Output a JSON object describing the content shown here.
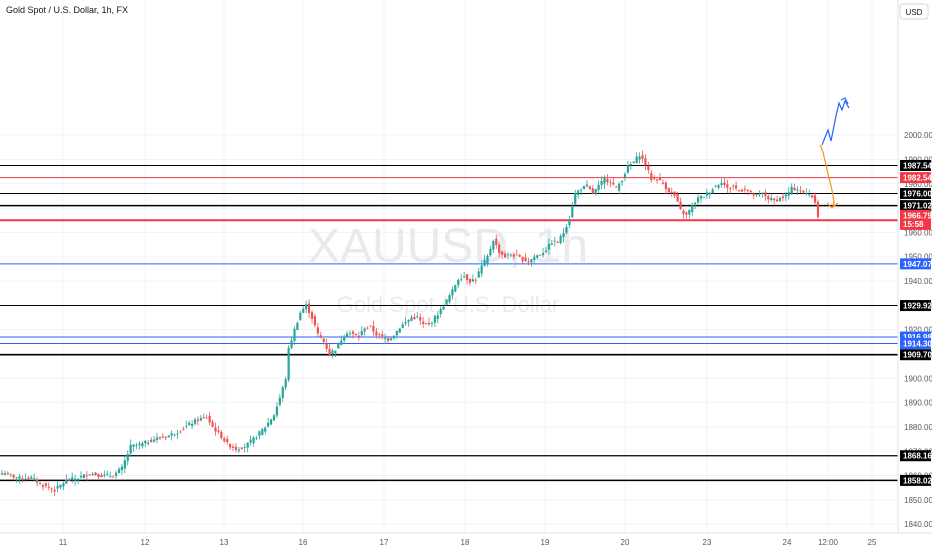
{
  "header": {
    "title": "Gold Spot / U.S. Dollar, 1h, FX",
    "currency": "USD"
  },
  "watermark": {
    "symbol": "XAUUSD, 1h",
    "name": "Gold Spot / U.S. Dollar"
  },
  "colors": {
    "up": "#26a69a",
    "down": "#ef5350",
    "grid": "#f0f3fa",
    "black_line": "#000000",
    "red_line": "#f23645",
    "blue_line": "#2962ff",
    "arrow_down": "#f7931a",
    "arrow_up": "#2962ff"
  },
  "chart_data": {
    "type": "candlestick",
    "symbol": "XAUUSD",
    "timeframe": "1h",
    "ylim": [
      1837,
      2010
    ],
    "y_ticks": [
      1840,
      1850,
      1860,
      1870,
      1880,
      1890,
      1900,
      1910,
      1920,
      1930,
      1940,
      1950,
      1960,
      1970,
      1980,
      1990,
      2000
    ],
    "x_ticks": [
      "11",
      "12",
      "13",
      "16",
      "17",
      "18",
      "19",
      "20",
      "23",
      "24",
      "12:00",
      "25"
    ],
    "grid": true,
    "levels": [
      {
        "value": 1987.54,
        "label": "1987.54",
        "style": "black"
      },
      {
        "value": 1982.54,
        "label": "1982.54",
        "style": "red"
      },
      {
        "value": 1976.0,
        "label": "1976.00",
        "style": "black"
      },
      {
        "value": 1971.02,
        "label": "1971.02",
        "style": "black"
      },
      {
        "value": 1965.0,
        "label": "1965.00",
        "style": "red"
      },
      {
        "value": 1947.07,
        "label": "1947.07",
        "style": "blue"
      },
      {
        "value": 1929.92,
        "label": "1929.92",
        "style": "black"
      },
      {
        "value": 1916.98,
        "label": "1916.98",
        "style": "blue"
      },
      {
        "value": 1914.3,
        "label": "1914.30",
        "style": "blue"
      },
      {
        "value": 1909.7,
        "label": "1909.70",
        "style": "black"
      },
      {
        "value": 1868.16,
        "label": "1868.16",
        "style": "black"
      },
      {
        "value": 1858.02,
        "label": "1858.02",
        "style": "black"
      }
    ],
    "last_price": {
      "value": 1966.79,
      "label": "1966.79",
      "countdown": "15:58"
    },
    "anchors": [
      [
        0,
        1861
      ],
      [
        6,
        1859
      ],
      [
        10,
        1859
      ],
      [
        14,
        1856
      ],
      [
        18,
        1854
      ],
      [
        22,
        1858
      ],
      [
        26,
        1859
      ],
      [
        30,
        1861
      ],
      [
        34,
        1860
      ],
      [
        38,
        1860
      ],
      [
        41,
        1863
      ],
      [
        44,
        1872
      ],
      [
        48,
        1873
      ],
      [
        52,
        1875
      ],
      [
        56,
        1876
      ],
      [
        60,
        1878
      ],
      [
        64,
        1881
      ],
      [
        67,
        1883
      ],
      [
        70,
        1884
      ],
      [
        72,
        1880
      ],
      [
        75,
        1876
      ],
      [
        77,
        1873
      ],
      [
        80,
        1871
      ],
      [
        83,
        1872
      ],
      [
        86,
        1875
      ],
      [
        90,
        1880
      ],
      [
        93,
        1885
      ],
      [
        95,
        1892
      ],
      [
        97,
        1900
      ],
      [
        98,
        1912
      ],
      [
        100,
        1920
      ],
      [
        102,
        1927
      ],
      [
        104,
        1930
      ],
      [
        106,
        1925
      ],
      [
        108,
        1918
      ],
      [
        110,
        1915
      ],
      [
        112,
        1910
      ],
      [
        114,
        1912
      ],
      [
        116,
        1916
      ],
      [
        118,
        1919
      ],
      [
        120,
        1918
      ],
      [
        122,
        1917
      ],
      [
        124,
        1921
      ],
      [
        126,
        1921
      ],
      [
        128,
        1918
      ],
      [
        130,
        1917
      ],
      [
        132,
        1916
      ],
      [
        134,
        1918
      ],
      [
        136,
        1921
      ],
      [
        138,
        1923
      ],
      [
        140,
        1925
      ],
      [
        142,
        1925
      ],
      [
        144,
        1922
      ],
      [
        146,
        1922
      ],
      [
        148,
        1925
      ],
      [
        150,
        1928
      ],
      [
        152,
        1932
      ],
      [
        154,
        1936
      ],
      [
        156,
        1941
      ],
      [
        158,
        1942
      ],
      [
        160,
        1940
      ],
      [
        162,
        1941
      ],
      [
        164,
        1946
      ],
      [
        166,
        1950
      ],
      [
        168,
        1957
      ],
      [
        170,
        1952
      ],
      [
        172,
        1950
      ],
      [
        174,
        1951
      ],
      [
        176,
        1950
      ],
      [
        178,
        1949
      ],
      [
        180,
        1948
      ],
      [
        182,
        1950
      ],
      [
        184,
        1951
      ],
      [
        186,
        1953
      ],
      [
        188,
        1956
      ],
      [
        190,
        1956
      ],
      [
        192,
        1960
      ],
      [
        194,
        1966
      ],
      [
        196,
        1976
      ],
      [
        198,
        1978
      ],
      [
        200,
        1979
      ],
      [
        202,
        1976
      ],
      [
        204,
        1979
      ],
      [
        206,
        1982
      ],
      [
        208,
        1981
      ],
      [
        210,
        1978
      ],
      [
        212,
        1982
      ],
      [
        214,
        1987
      ],
      [
        216,
        1989
      ],
      [
        218,
        1992
      ],
      [
        220,
        1988
      ],
      [
        222,
        1982
      ],
      [
        224,
        1982
      ],
      [
        226,
        1980
      ],
      [
        228,
        1977
      ],
      [
        230,
        1975
      ],
      [
        232,
        1969
      ],
      [
        234,
        1967
      ],
      [
        236,
        1971
      ],
      [
        238,
        1974
      ],
      [
        240,
        1975
      ],
      [
        242,
        1977
      ],
      [
        244,
        1979
      ],
      [
        246,
        1981
      ],
      [
        248,
        1978
      ],
      [
        250,
        1979
      ],
      [
        252,
        1977
      ],
      [
        254,
        1978
      ],
      [
        256,
        1976
      ],
      [
        258,
        1975
      ],
      [
        260,
        1976
      ],
      [
        262,
        1974
      ],
      [
        264,
        1973
      ],
      [
        266,
        1974
      ],
      [
        268,
        1975
      ],
      [
        270,
        1978
      ],
      [
        272,
        1978
      ],
      [
        274,
        1976
      ],
      [
        276,
        1976
      ],
      [
        278,
        1973
      ],
      [
        279,
        1966.79
      ]
    ]
  }
}
